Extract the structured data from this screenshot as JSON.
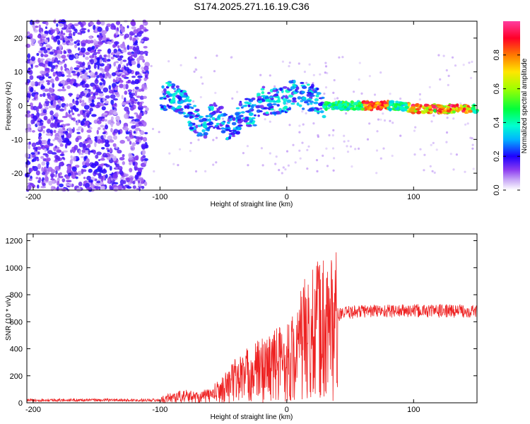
{
  "title": "S174.2025.271.16.19.C36",
  "colors": {
    "spectrogram_low": "#b497f0",
    "spectrogram_mid": "#3b10c9",
    "snr_line": "#ee2222"
  },
  "chart_data": [
    {
      "type": "heatmap",
      "name": "spectrogram",
      "title": "S174.2025.271.16.19.C36",
      "xlabel": "Height of straight line (km)",
      "ylabel": "Frequency (Hz)",
      "xlim": [
        -205,
        150
      ],
      "ylim": [
        -25,
        25
      ],
      "xticks": [
        -200,
        -100,
        0,
        100
      ],
      "yticks": [
        -20,
        -10,
        0,
        10,
        20
      ],
      "ridge": {
        "x": [
          -100,
          -95,
          -90,
          -85,
          -80,
          -75,
          -70,
          -65,
          -60,
          -55,
          -50,
          -45,
          -40,
          -35,
          -30,
          -25,
          -20,
          -15,
          -10,
          -5,
          0,
          5,
          10,
          15,
          20,
          25,
          30,
          40,
          50,
          60,
          70,
          80,
          90,
          100,
          110,
          120,
          130,
          140,
          150
        ],
        "y": [
          2,
          3,
          3,
          2,
          0,
          -3,
          -5,
          -7,
          -4,
          -3,
          -5,
          -7,
          -5,
          -2,
          -2,
          -2,
          2,
          1,
          1,
          2,
          2,
          4,
          3,
          3,
          2,
          1,
          0,
          0,
          0,
          0,
          0,
          0,
          0,
          -1,
          -1,
          -1,
          -1,
          -1,
          -1
        ]
      },
      "colorbar": {
        "label": "Normalized spectral amplitude",
        "ticks": [
          "0.0",
          "0.2",
          "0.4",
          "0.6",
          "0.8"
        ],
        "range": [
          0,
          1
        ]
      }
    },
    {
      "type": "line",
      "name": "snr",
      "xlabel": "Height of straight line (km)",
      "ylabel": "SNR (10 * v/v)",
      "xlim": [
        -205,
        150
      ],
      "ylim": [
        0,
        1250
      ],
      "xticks": [
        -200,
        -100,
        0,
        100
      ],
      "yticks": [
        0,
        200,
        400,
        600,
        800,
        1000,
        1200
      ],
      "envelope": {
        "x": [
          -205,
          -120,
          -100,
          -90,
          -80,
          -70,
          -60,
          -50,
          -40,
          -30,
          -20,
          -10,
          0,
          10,
          20,
          25,
          30,
          35,
          40,
          50,
          60,
          80,
          100,
          120,
          150
        ],
        "y": [
          20,
          20,
          30,
          60,
          70,
          60,
          80,
          150,
          250,
          300,
          350,
          400,
          450,
          500,
          550,
          600,
          620,
          650,
          650,
          670,
          680,
          680,
          680,
          680,
          680
        ]
      }
    }
  ]
}
